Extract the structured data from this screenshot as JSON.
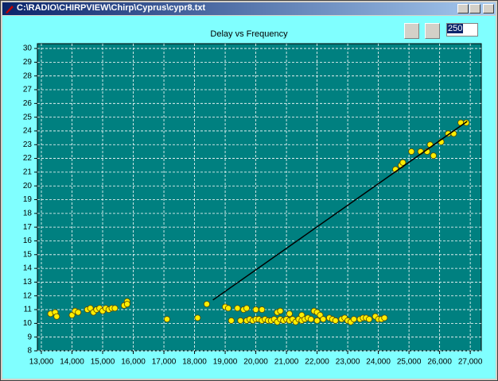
{
  "window": {
    "title": "C:\\RADIO\\CHIRPVIEW\\Chirp\\Cyprus\\cypr8.txt"
  },
  "toolbar": {
    "input_value": "250"
  },
  "chart_data": {
    "type": "scatter",
    "title": "Delay vs Frequency",
    "grid": true,
    "xlim": [
      12870,
      27360
    ],
    "ylim": [
      8,
      30.35
    ],
    "xticks": [
      {
        "value": 13000,
        "label": "13,000"
      },
      {
        "value": 14000,
        "label": "14,000"
      },
      {
        "value": 15000,
        "label": "15,000"
      },
      {
        "value": 16000,
        "label": "16,000"
      },
      {
        "value": 17000,
        "label": "17,000"
      },
      {
        "value": 18000,
        "label": "18,000"
      },
      {
        "value": 19000,
        "label": "19,000"
      },
      {
        "value": 20000,
        "label": "20,000"
      },
      {
        "value": 21000,
        "label": "21,000"
      },
      {
        "value": 22000,
        "label": "22,000"
      },
      {
        "value": 23000,
        "label": "23,000"
      },
      {
        "value": 24000,
        "label": "24,000"
      },
      {
        "value": 25000,
        "label": "25,000"
      },
      {
        "value": 26000,
        "label": "26,000"
      },
      {
        "value": 27000,
        "label": "27,000"
      }
    ],
    "yticks": [
      8,
      9,
      10,
      11,
      12,
      13,
      14,
      15,
      16,
      17,
      18,
      19,
      20,
      21,
      22,
      23,
      24,
      25,
      26,
      27,
      28,
      29,
      30
    ],
    "series": [
      {
        "color": "#ffee00",
        "x": [
          13300,
          13450,
          13500,
          14000,
          14100,
          14200,
          14500,
          14600,
          14700,
          14800,
          14900,
          15000,
          15100,
          15200,
          15300,
          15400,
          15700,
          15800,
          15800,
          17100,
          18100,
          18400,
          19000,
          19100,
          19200,
          19400,
          19500,
          19600,
          19700,
          19700,
          19800,
          19900,
          20000,
          20000,
          20100,
          20200,
          20200,
          20300,
          20400,
          20500,
          20600,
          20700,
          20700,
          20800,
          20800,
          20900,
          21000,
          21100,
          21100,
          21200,
          21300,
          21400,
          21500,
          21500,
          21600,
          21700,
          21800,
          21900,
          22000,
          22000,
          22100,
          22200,
          22400,
          22500,
          22600,
          22800,
          22900,
          23000,
          23100,
          23200,
          23400,
          23500,
          23600,
          23700,
          23900,
          24000,
          24100,
          24200,
          24560,
          24740,
          24800,
          25080,
          25380,
          25590,
          25690,
          25800,
          26050,
          26280,
          26460,
          26690,
          26870
        ],
        "values": [
          10.7,
          10.8,
          10.5,
          10.6,
          10.9,
          10.8,
          11.0,
          11.1,
          10.8,
          11.0,
          11.1,
          10.9,
          11.1,
          11.0,
          11.1,
          11.1,
          11.3,
          11.6,
          11.4,
          10.3,
          10.4,
          11.4,
          11.2,
          11.1,
          10.2,
          11.1,
          10.2,
          11.0,
          10.2,
          11.1,
          10.3,
          10.2,
          10.3,
          11.0,
          10.3,
          11.0,
          10.2,
          10.3,
          10.2,
          10.2,
          10.3,
          10.8,
          10.1,
          10.9,
          10.3,
          10.2,
          10.3,
          10.7,
          10.2,
          10.3,
          10.1,
          10.3,
          10.6,
          10.2,
          10.3,
          10.4,
          10.3,
          10.9,
          10.8,
          10.2,
          10.6,
          10.3,
          10.4,
          10.3,
          10.2,
          10.3,
          10.4,
          10.2,
          10.1,
          10.3,
          10.3,
          10.4,
          10.4,
          10.3,
          10.5,
          10.3,
          10.3,
          10.4,
          21.2,
          21.5,
          21.7,
          22.5,
          22.5,
          22.5,
          23.0,
          22.2,
          23.2,
          23.8,
          23.8,
          24.6,
          24.6
        ]
      }
    ],
    "trend_line": {
      "x": [
        18600,
        26900
      ],
      "y": [
        11.7,
        24.7
      ],
      "color": "#000000"
    }
  }
}
